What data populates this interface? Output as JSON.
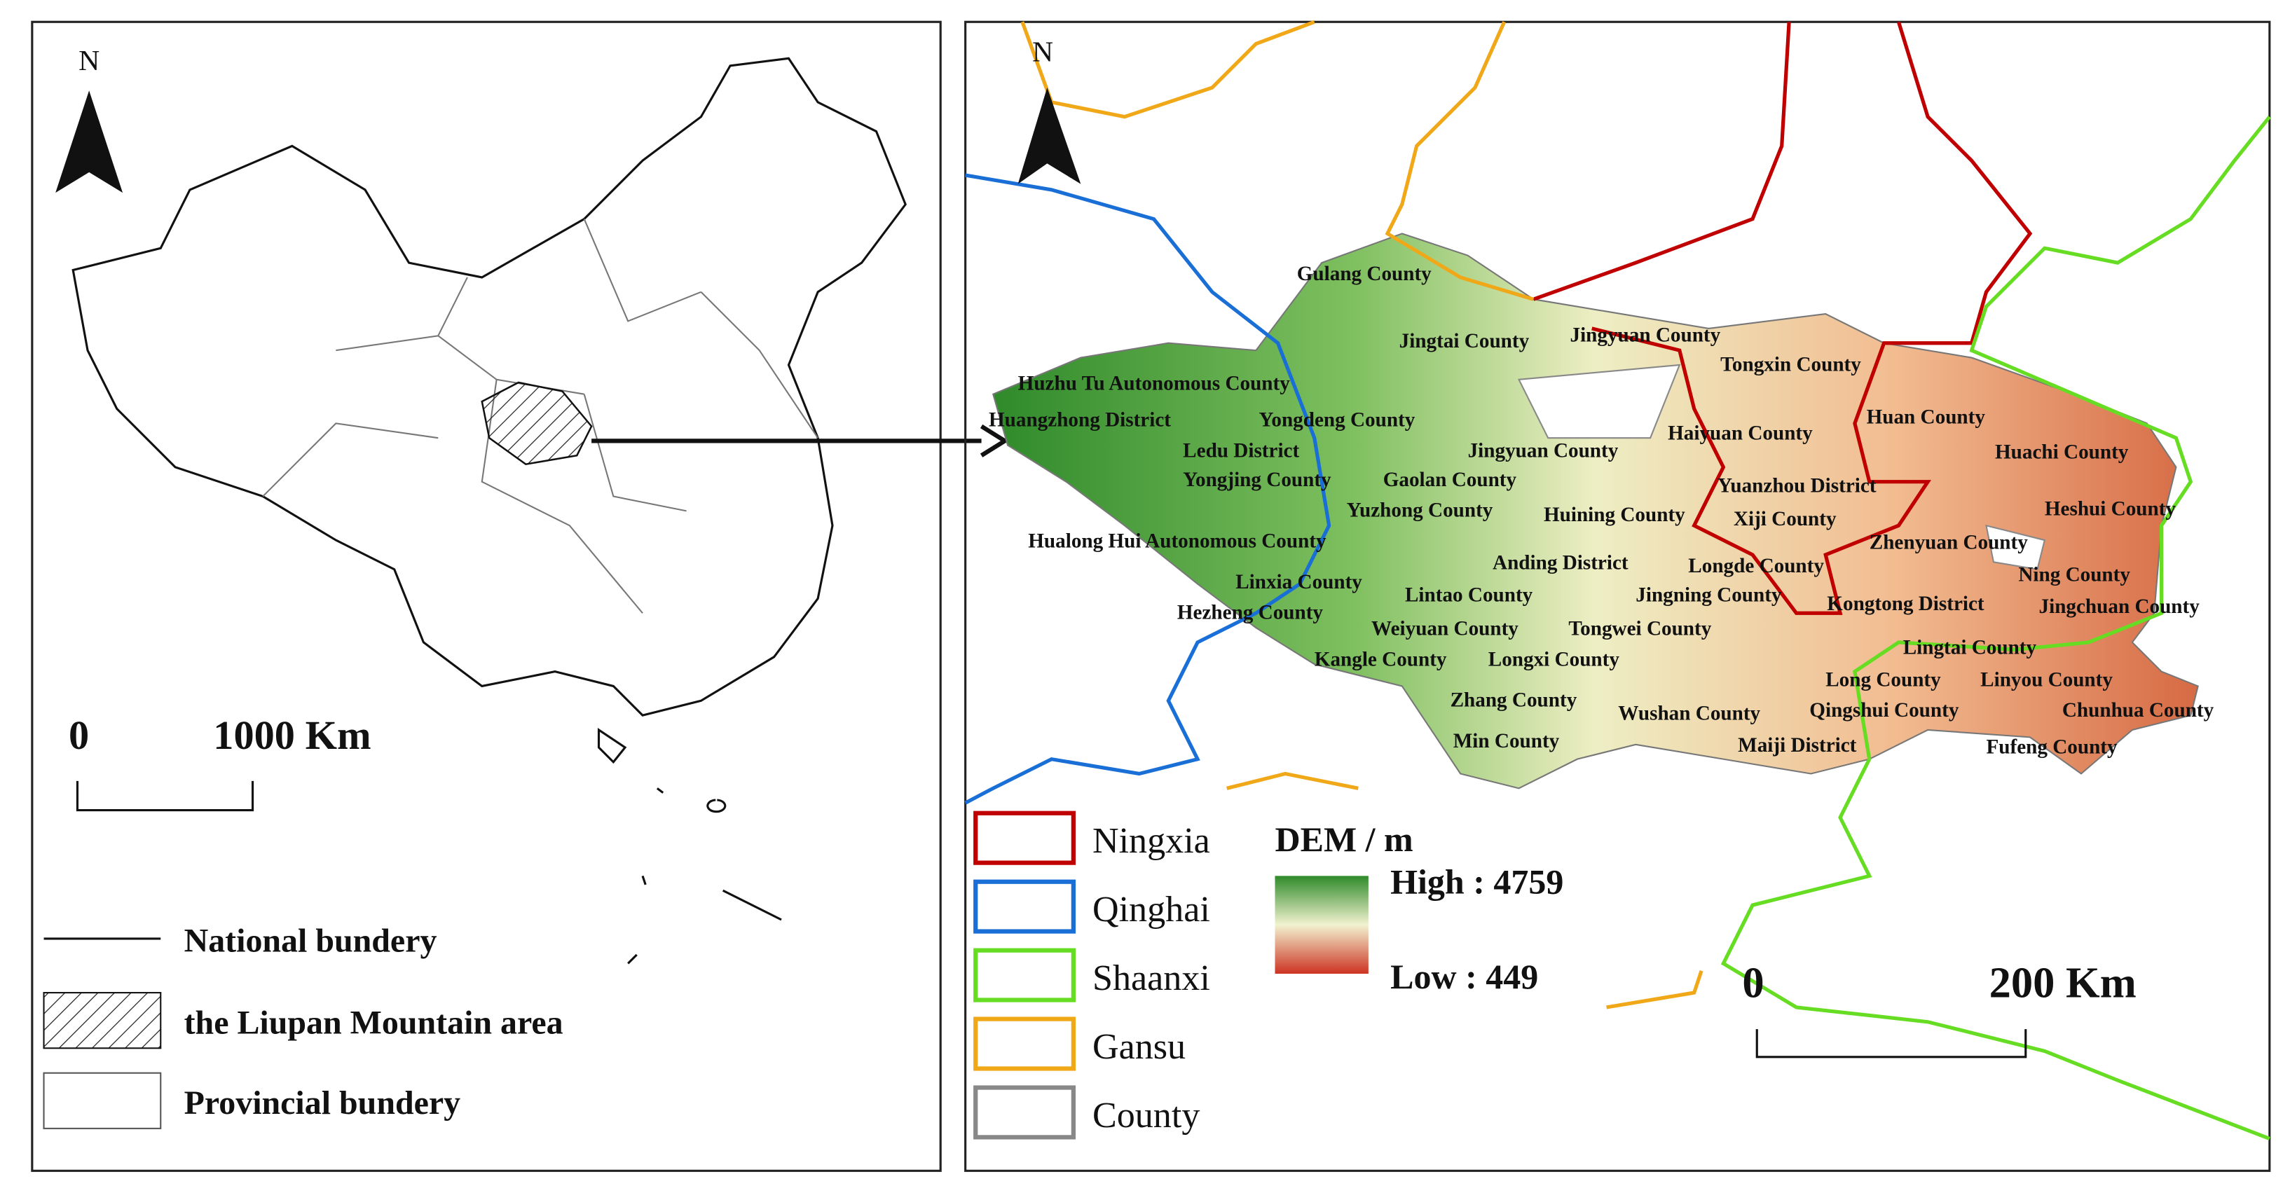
{
  "left_map": {
    "north_label": "N",
    "scale_bar": {
      "start": "0",
      "end": "1000 Km"
    },
    "legend": [
      "National bundery",
      "the Liupan Mountain area",
      "Provincial bundery"
    ]
  },
  "right_map": {
    "north_label": "N",
    "county_labels": [
      "Gulang County",
      "Jingtai County",
      "Jingyuan County",
      "Tongxin County",
      "Huzhu Tu Autonomous County",
      "Huangzhong District",
      "Yongdeng County",
      "Haiyuan County",
      "Huan County",
      "Ledu District",
      "Jingyuan County",
      "Huachi County",
      "Yongjing County",
      "Gaolan County",
      "Yuanzhou District",
      "Yuzhong County",
      "Huining County",
      "Xiji County",
      "Heshui County",
      "Hualong Hui Autonomous County",
      "Zhenyuan County",
      "Anding District",
      "Longde County",
      "Ning County",
      "Linxia County",
      "Lintao County",
      "Jingning County",
      "Kongtong District",
      "Jingchuan County",
      "Hezheng County",
      "Weiyuan County",
      "Tongwei County",
      "Lingtai County",
      "Kangle County",
      "Longxi County",
      "Long County",
      "Linyou County",
      "Zhang County",
      "Wushan County",
      "Qingshui County",
      "Chunhua County",
      "Maiji District",
      "Min County",
      "Fufeng County"
    ],
    "legend": [
      {
        "name": "Ningxia",
        "color": "#c00000"
      },
      {
        "name": "Qinghai",
        "color": "#1a6fd6"
      },
      {
        "name": "Shaanxi",
        "color": "#66dd22"
      },
      {
        "name": "Gansu",
        "color": "#f0a818"
      },
      {
        "name": "County",
        "color": "#888888"
      }
    ],
    "dem_legend": {
      "title": "DEM / m",
      "high": "High : 4759",
      "low": "Low : 449"
    },
    "scale_bar": {
      "start": "0",
      "end": "200 Km"
    }
  }
}
